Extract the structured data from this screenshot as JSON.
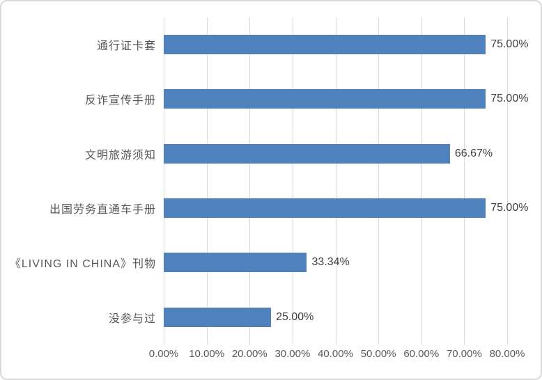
{
  "chart_data": {
    "type": "bar",
    "orientation": "horizontal",
    "title": "",
    "categories": [
      "通行证卡套",
      "反诈宣传手册",
      "文明旅游须知",
      "出国劳务直通车手册",
      "《LIVING IN CHINA》刊物",
      "没参与过"
    ],
    "values": [
      75.0,
      75.0,
      66.67,
      75.0,
      33.34,
      25.0
    ],
    "value_labels": [
      "75.00%",
      "75.00%",
      "66.67%",
      "75.00%",
      "33.34%",
      "25.00%"
    ],
    "x_ticks": [
      "0.00%",
      "10.00%",
      "20.00%",
      "30.00%",
      "40.00%",
      "50.00%",
      "60.00%",
      "70.00%",
      "80.00%"
    ],
    "xlim": [
      0,
      80
    ],
    "grid": true,
    "legend": false,
    "bar_color": "#4f81bd",
    "gridline_color": "#d9d9d9",
    "axis_text_color": "#595959",
    "value_text_color": "#404040",
    "frame_border_color": "#d9d9d9"
  }
}
